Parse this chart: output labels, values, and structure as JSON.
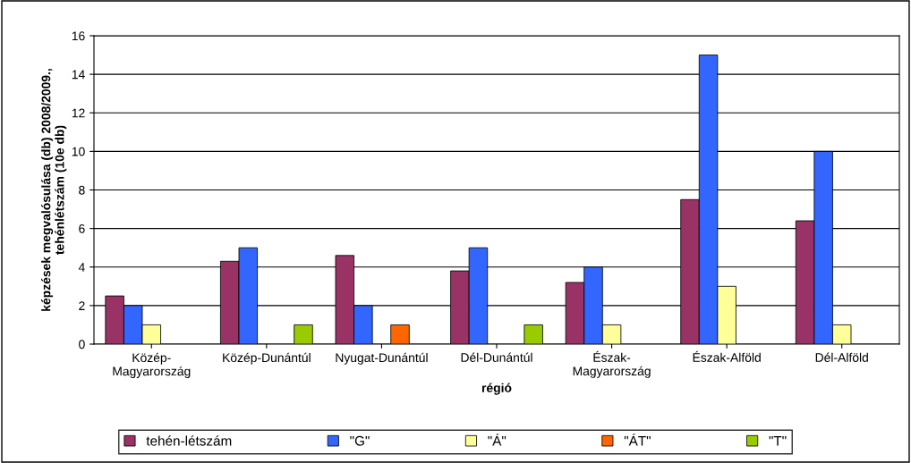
{
  "chart_data": {
    "type": "bar",
    "xlabel": "régió",
    "ylabel": "képzések megvalósulása (db) 2008/2009.,\ntehénlétszám (10e db)",
    "categories": [
      "Közép-\nMagyarország",
      "Közép-Dunántúl",
      "Nyugat-Dunántúl",
      "Dél-Dunántúl",
      "Észak-\nMagyarország",
      "Észak-Alföld",
      "Dél-Alföld"
    ],
    "series": [
      {
        "name": "tehén-létszám",
        "color": "#993366",
        "values": [
          2.5,
          4.3,
          4.6,
          3.8,
          3.2,
          7.5,
          6.4
        ]
      },
      {
        "name": "\"G\"",
        "color": "#3366ff",
        "values": [
          2,
          5,
          2,
          5,
          4,
          15,
          10
        ]
      },
      {
        "name": "\"Á\"",
        "color": "#ffff99",
        "values": [
          1,
          null,
          null,
          null,
          1,
          3,
          1
        ]
      },
      {
        "name": "\"ÁT\"",
        "color": "#ff6600",
        "values": [
          null,
          null,
          1,
          null,
          null,
          null,
          null
        ]
      },
      {
        "name": "\"T\"",
        "color": "#99cc00",
        "values": [
          null,
          1,
          null,
          1,
          null,
          null,
          null
        ]
      }
    ],
    "ylim": [
      0,
      16
    ],
    "yticks": [
      0,
      2,
      4,
      6,
      8,
      10,
      12,
      14,
      16
    ],
    "grid": "y",
    "legend": "bottom"
  }
}
